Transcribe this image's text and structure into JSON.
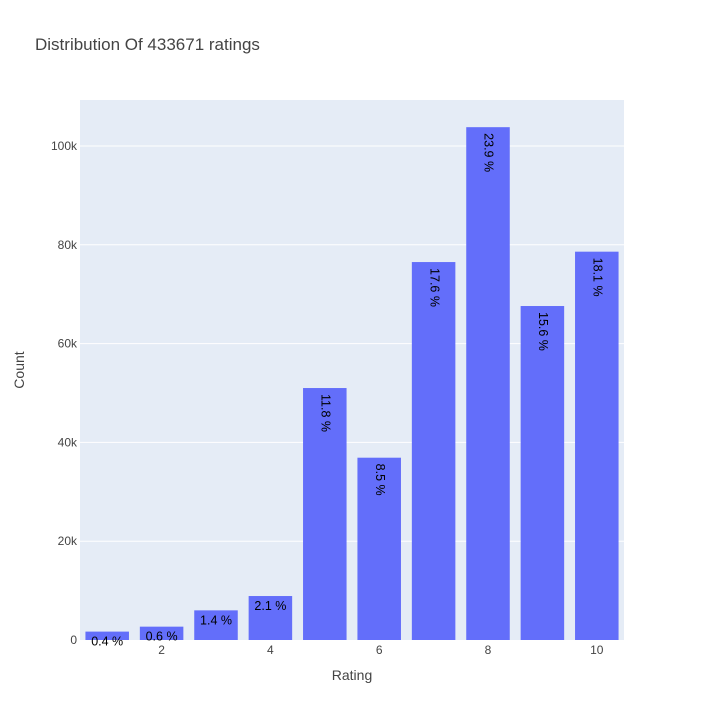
{
  "chart_data": {
    "type": "bar",
    "title": "Distribution Of 433671 ratings",
    "xlabel": "Rating",
    "ylabel": "Count",
    "categories": [
      1,
      2,
      3,
      4,
      5,
      6,
      7,
      8,
      9,
      10
    ],
    "values": [
      1700,
      2700,
      6000,
      8900,
      51000,
      36900,
      76500,
      103800,
      67600,
      78600
    ],
    "data_labels": [
      "0.4 %",
      "0.6 %",
      "1.4 %",
      "2.1 %",
      "11.8 %",
      "8.5 %",
      "17.6 %",
      "23.9 %",
      "15.6 %",
      "18.1 %"
    ],
    "x_ticks": [
      2,
      4,
      6,
      8,
      10
    ],
    "y_ticks": [
      0,
      20000,
      40000,
      60000,
      80000,
      100000
    ],
    "y_tick_labels": [
      "0",
      "20k",
      "40k",
      "60k",
      "80k",
      "100k"
    ],
    "ylim": [
      0,
      109300
    ],
    "xlim": [
      0.5,
      10.5
    ],
    "grid": true,
    "colors": {
      "bar": "#636efa",
      "plot_bg": "#e5ecf6",
      "grid": "#ffffff",
      "text": "#444444"
    }
  }
}
